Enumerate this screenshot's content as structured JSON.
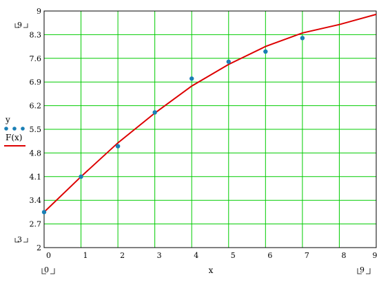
{
  "chart_data": {
    "type": "scatter",
    "xlabel": "x",
    "ylabel": "y",
    "xlim": [
      0,
      9
    ],
    "ylim": [
      2,
      9
    ],
    "x_ticks": [
      0,
      1,
      2,
      3,
      4,
      5,
      6,
      7,
      8,
      9
    ],
    "y_ticks": [
      2,
      2.7,
      3.4,
      4.1,
      4.8,
      5.5,
      6.2,
      6.9,
      7.6,
      8.3,
      9
    ],
    "y_tick_labels": [
      "2",
      "2.7",
      "3.4",
      "4.1",
      "4.8",
      "5.5",
      "6.2",
      "6.9",
      "7.6",
      "8.3",
      "9"
    ],
    "x_tick_labels": [
      "0",
      "1",
      "2",
      "3",
      "4",
      "5",
      "6",
      "7",
      "8",
      "9"
    ],
    "grid": true,
    "grid_color": "#00cc00",
    "range_markers": {
      "ymax": "9",
      "ymin": "3",
      "xmin": "0",
      "xmax": "9"
    },
    "series": [
      {
        "name": "y",
        "kind": "points",
        "color": "#1a7fb5",
        "x": [
          0,
          1,
          2,
          3,
          4,
          5,
          6,
          7
        ],
        "y": [
          3.05,
          4.1,
          5.0,
          6.0,
          7.0,
          7.5,
          7.8,
          8.2
        ]
      },
      {
        "name": "F(x)",
        "kind": "line",
        "color": "#dd0000",
        "x": [
          0,
          1,
          2,
          3,
          4,
          5,
          6,
          7,
          8,
          9
        ],
        "y": [
          3.05,
          4.1,
          5.1,
          5.98,
          6.78,
          7.42,
          7.95,
          8.35,
          8.6,
          8.9
        ]
      }
    ],
    "legend_position": "left"
  }
}
